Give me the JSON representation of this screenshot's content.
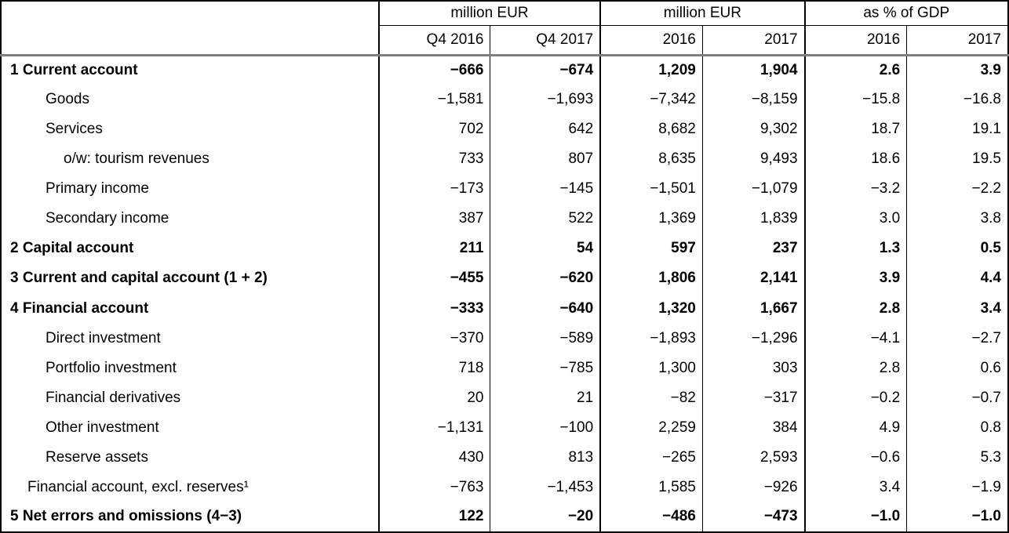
{
  "table": {
    "column_groups": [
      {
        "label": "million EUR",
        "columns": [
          "Q4 2016",
          "Q4 2017"
        ]
      },
      {
        "label": "million EUR",
        "columns": [
          "2016",
          "2017"
        ]
      },
      {
        "label": "as % of GDP",
        "columns": [
          "2016",
          "2017"
        ]
      }
    ],
    "rows": [
      {
        "label": "1 Current account",
        "bold": true,
        "indent": 0,
        "values": [
          "−666",
          "−674",
          "1,209",
          "1,904",
          "2.6",
          "3.9"
        ]
      },
      {
        "label": "Goods",
        "bold": false,
        "indent": 1,
        "values": [
          "−1,581",
          "−1,693",
          "−7,342",
          "−8,159",
          "−15.8",
          "−16.8"
        ]
      },
      {
        "label": "Services",
        "bold": false,
        "indent": 1,
        "values": [
          "702",
          "642",
          "8,682",
          "9,302",
          "18.7",
          "19.1"
        ]
      },
      {
        "label": "o/w: tourism revenues",
        "bold": false,
        "indent": 2,
        "values": [
          "733",
          "807",
          "8,635",
          "9,493",
          "18.6",
          "19.5"
        ]
      },
      {
        "label": "Primary income",
        "bold": false,
        "indent": 1,
        "values": [
          "−173",
          "−145",
          "−1,501",
          "−1,079",
          "−3.2",
          "−2.2"
        ]
      },
      {
        "label": "Secondary income",
        "bold": false,
        "indent": 1,
        "values": [
          "387",
          "522",
          "1,369",
          "1,839",
          "3.0",
          "3.8"
        ]
      },
      {
        "label": "2 Capital account",
        "bold": true,
        "indent": 0,
        "values": [
          "211",
          "54",
          "597",
          "237",
          "1.3",
          "0.5"
        ]
      },
      {
        "label": "3 Current and capital account (1 + 2)",
        "bold": true,
        "indent": 0,
        "values": [
          "−455",
          "−620",
          "1,806",
          "2,141",
          "3.9",
          "4.4"
        ]
      },
      {
        "label": "4 Financial account",
        "bold": true,
        "indent": 0,
        "values": [
          "−333",
          "−640",
          "1,320",
          "1,667",
          "2.8",
          "3.4"
        ]
      },
      {
        "label": "Direct investment",
        "bold": false,
        "indent": 1,
        "values": [
          "−370",
          "−589",
          "−1,893",
          "−1,296",
          "−4.1",
          "−2.7"
        ]
      },
      {
        "label": "Portfolio investment",
        "bold": false,
        "indent": 1,
        "values": [
          "718",
          "−785",
          "1,300",
          "303",
          "2.8",
          "0.6"
        ]
      },
      {
        "label": "Financial derivatives",
        "bold": false,
        "indent": 1,
        "values": [
          "20",
          "21",
          "−82",
          "−317",
          "−0.2",
          "−0.7"
        ]
      },
      {
        "label": "Other investment",
        "bold": false,
        "indent": 1,
        "values": [
          "−1,131",
          "−100",
          "2,259",
          "384",
          "4.9",
          "0.8"
        ]
      },
      {
        "label": "Reserve assets",
        "bold": false,
        "indent": 1,
        "values": [
          "430",
          "813",
          "−265",
          "2,593",
          "−0.6",
          "5.3"
        ]
      },
      {
        "label": "Financial account, excl. reserves¹",
        "bold": false,
        "indent": 3,
        "values": [
          "−763",
          "−1,453",
          "1,585",
          "−926",
          "3.4",
          "−1.9"
        ]
      },
      {
        "label": "5 Net errors and omissions (4−3)",
        "bold": true,
        "indent": 0,
        "values": [
          "122",
          "−20",
          "−486",
          "−473",
          "−1.0",
          "−1.0"
        ]
      }
    ]
  },
  "chart_data": {
    "type": "table",
    "column_groups": [
      {
        "label": "million EUR",
        "columns": [
          "Q4 2016",
          "Q4 2017"
        ]
      },
      {
        "label": "million EUR",
        "columns": [
          "2016",
          "2017"
        ]
      },
      {
        "label": "as % of GDP",
        "columns": [
          "2016",
          "2017"
        ]
      }
    ],
    "columns": [
      "Q4 2016 (million EUR)",
      "Q4 2017 (million EUR)",
      "2016 (million EUR)",
      "2017 (million EUR)",
      "2016 (as % of GDP)",
      "2017 (as % of GDP)"
    ],
    "rows": [
      {
        "label": "1 Current account",
        "values": [
          -666,
          -674,
          1209,
          1904,
          2.6,
          3.9
        ]
      },
      {
        "label": "Goods",
        "values": [
          -1581,
          -1693,
          -7342,
          -8159,
          -15.8,
          -16.8
        ]
      },
      {
        "label": "Services",
        "values": [
          702,
          642,
          8682,
          9302,
          18.7,
          19.1
        ]
      },
      {
        "label": "o/w: tourism revenues",
        "values": [
          733,
          807,
          8635,
          9493,
          18.6,
          19.5
        ]
      },
      {
        "label": "Primary income",
        "values": [
          -173,
          -145,
          -1501,
          -1079,
          -3.2,
          -2.2
        ]
      },
      {
        "label": "Secondary income",
        "values": [
          387,
          522,
          1369,
          1839,
          3.0,
          3.8
        ]
      },
      {
        "label": "2 Capital account",
        "values": [
          211,
          54,
          597,
          237,
          1.3,
          0.5
        ]
      },
      {
        "label": "3 Current and capital account (1 + 2)",
        "values": [
          -455,
          -620,
          1806,
          2141,
          3.9,
          4.4
        ]
      },
      {
        "label": "4 Financial account",
        "values": [
          -333,
          -640,
          1320,
          1667,
          2.8,
          3.4
        ]
      },
      {
        "label": "Direct investment",
        "values": [
          -370,
          -589,
          -1893,
          -1296,
          -4.1,
          -2.7
        ]
      },
      {
        "label": "Portfolio investment",
        "values": [
          718,
          -785,
          1300,
          303,
          2.8,
          0.6
        ]
      },
      {
        "label": "Financial derivatives",
        "values": [
          20,
          21,
          -82,
          -317,
          -0.2,
          -0.7
        ]
      },
      {
        "label": "Other investment",
        "values": [
          -1131,
          -100,
          2259,
          384,
          4.9,
          0.8
        ]
      },
      {
        "label": "Reserve assets",
        "values": [
          430,
          813,
          -265,
          2593,
          -0.6,
          5.3
        ]
      },
      {
        "label": "Financial account, excl. reserves (1)",
        "values": [
          -763,
          -1453,
          1585,
          -926,
          3.4,
          -1.9
        ]
      },
      {
        "label": "5 Net errors and omissions (4−3)",
        "values": [
          122,
          -20,
          -486,
          -473,
          -1.0,
          -1.0
        ]
      }
    ]
  },
  "colors": {
    "text": "#000000",
    "border": "#000000",
    "header_separator": "#7f7f7f",
    "background": "#ffffff"
  }
}
